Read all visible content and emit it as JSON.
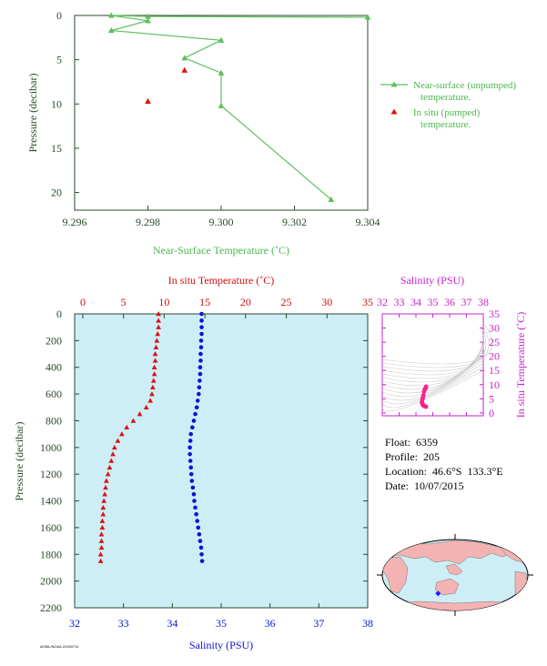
{
  "info": {
    "float_label": "Float:",
    "float_value": "6359",
    "profile_label": "Profile:",
    "profile_value": "205",
    "location_label": "Location:",
    "location_value": "46.6°S  133.3°E",
    "date_label": "Date:",
    "date_value": "10/07/2015"
  },
  "footer": {
    "code": "AOML/NOAA 20150710"
  },
  "colors": {
    "near_surface": "#5cbf5c",
    "temperature": "#e01010",
    "salinity": "#0a14d6",
    "ts_accent": "#cc22cc",
    "panel_bg": "#cdeef7",
    "axis_dark": "#2a4a2a"
  },
  "chart_data": [
    {
      "type": "line",
      "xlabel": "Near-Surface Temperature (˚C)",
      "ylabel": "Pressure (decibar)",
      "xlim": [
        9.296,
        9.304
      ],
      "ylim": [
        22,
        0
      ],
      "xticks": [
        9.296,
        9.298,
        9.3,
        9.302,
        9.304
      ],
      "xtick_labels": [
        "9.296",
        "9.298",
        "9.300",
        "9.302",
        "9.304"
      ],
      "yticks": [
        0,
        5,
        10,
        15,
        20
      ],
      "ytick_labels": [
        "0",
        "5",
        "10",
        "15",
        "20"
      ],
      "series": [
        {
          "name": "Near-surface (unpumped) temperature.",
          "points": [
            [
              9.304,
              0.2
            ],
            [
              9.298,
              0.1
            ],
            [
              9.297,
              0.0
            ],
            [
              9.298,
              0.6
            ],
            [
              9.297,
              1.7
            ],
            [
              9.3,
              2.8
            ],
            [
              9.299,
              4.8
            ],
            [
              9.3,
              6.5
            ],
            [
              9.3,
              10.2
            ],
            [
              9.303,
              20.8
            ]
          ]
        },
        {
          "name": "In situ (pumped) temperature.",
          "points": [
            [
              9.299,
              6.2
            ],
            [
              9.298,
              9.7
            ]
          ]
        }
      ],
      "legend_position": "right"
    },
    {
      "type": "scatter",
      "x_top_label": "In situ Temperature (˚C)",
      "x_bottom_label": "Salinity (PSU)",
      "ylabel": "Pressure (decibar)",
      "temp_lim": [
        -1,
        35
      ],
      "sal_lim": [
        32,
        38
      ],
      "ylim": [
        2200,
        0
      ],
      "temp_ticks": [
        0,
        5,
        10,
        15,
        20,
        25,
        30,
        35
      ],
      "temp_tick_labels": [
        "0",
        "5",
        "10",
        "15",
        "20",
        "25",
        "30",
        "35"
      ],
      "sal_ticks": [
        32,
        33,
        34,
        35,
        36,
        37,
        38
      ],
      "sal_tick_labels": [
        "32",
        "33",
        "34",
        "35",
        "36",
        "37",
        "38"
      ],
      "pressure_ticks": [
        0,
        200,
        400,
        600,
        800,
        1000,
        1200,
        1400,
        1600,
        1800,
        2000,
        2200
      ],
      "pressure_tick_labels": [
        "0",
        "200",
        "400",
        "600",
        "800",
        "1000",
        "1200",
        "1400",
        "1600",
        "1800",
        "2000",
        "2200"
      ],
      "temperature_profile": [
        [
          9.3,
          0
        ],
        [
          9.3,
          50
        ],
        [
          9.3,
          100
        ],
        [
          9.2,
          150
        ],
        [
          9.1,
          200
        ],
        [
          9.0,
          250
        ],
        [
          8.9,
          300
        ],
        [
          8.9,
          350
        ],
        [
          8.8,
          400
        ],
        [
          8.8,
          450
        ],
        [
          8.7,
          500
        ],
        [
          8.6,
          550
        ],
        [
          8.5,
          600
        ],
        [
          8.3,
          650
        ],
        [
          7.8,
          700
        ],
        [
          7.0,
          750
        ],
        [
          6.2,
          800
        ],
        [
          5.4,
          850
        ],
        [
          4.8,
          900
        ],
        [
          4.3,
          950
        ],
        [
          3.9,
          1000
        ],
        [
          3.7,
          1050
        ],
        [
          3.5,
          1100
        ],
        [
          3.3,
          1150
        ],
        [
          3.1,
          1200
        ],
        [
          2.9,
          1250
        ],
        [
          2.8,
          1300
        ],
        [
          2.7,
          1350
        ],
        [
          2.6,
          1400
        ],
        [
          2.5,
          1450
        ],
        [
          2.5,
          1500
        ],
        [
          2.4,
          1550
        ],
        [
          2.4,
          1600
        ],
        [
          2.3,
          1650
        ],
        [
          2.3,
          1700
        ],
        [
          2.3,
          1750
        ],
        [
          2.2,
          1800
        ],
        [
          2.2,
          1850
        ]
      ],
      "salinity_profile": [
        [
          34.6,
          0
        ],
        [
          34.6,
          50
        ],
        [
          34.6,
          100
        ],
        [
          34.6,
          150
        ],
        [
          34.59,
          200
        ],
        [
          34.59,
          250
        ],
        [
          34.58,
          300
        ],
        [
          34.58,
          350
        ],
        [
          34.57,
          400
        ],
        [
          34.57,
          450
        ],
        [
          34.56,
          500
        ],
        [
          34.55,
          550
        ],
        [
          34.54,
          600
        ],
        [
          34.52,
          650
        ],
        [
          34.5,
          700
        ],
        [
          34.47,
          750
        ],
        [
          34.44,
          800
        ],
        [
          34.41,
          850
        ],
        [
          34.38,
          900
        ],
        [
          34.37,
          950
        ],
        [
          34.36,
          1000
        ],
        [
          34.36,
          1050
        ],
        [
          34.37,
          1100
        ],
        [
          34.38,
          1150
        ],
        [
          34.39,
          1200
        ],
        [
          34.4,
          1250
        ],
        [
          34.42,
          1300
        ],
        [
          34.44,
          1350
        ],
        [
          34.45,
          1400
        ],
        [
          34.47,
          1450
        ],
        [
          34.49,
          1500
        ],
        [
          34.51,
          1550
        ],
        [
          34.53,
          1600
        ],
        [
          34.55,
          1650
        ],
        [
          34.57,
          1700
        ],
        [
          34.59,
          1750
        ],
        [
          34.6,
          1800
        ],
        [
          34.61,
          1850
        ]
      ]
    },
    {
      "type": "scatter",
      "xlabel": "Salinity (PSU)",
      "ylabel": "In situ Temperature (˚C)",
      "xlim": [
        32,
        38
      ],
      "ylim": [
        -1,
        35
      ],
      "xticks": [
        32,
        33,
        34,
        35,
        36,
        37,
        38
      ],
      "xtick_labels": [
        "32",
        "33",
        "34",
        "35",
        "36",
        "37",
        "38"
      ],
      "yticks": [
        0,
        5,
        10,
        15,
        20,
        25,
        30,
        35
      ],
      "ytick_labels": [
        "0",
        "5",
        "10",
        "15",
        "20",
        "25",
        "30",
        "35"
      ],
      "points": [
        [
          34.6,
          9.3
        ],
        [
          34.59,
          9.0
        ],
        [
          34.57,
          8.8
        ],
        [
          34.55,
          8.5
        ],
        [
          34.52,
          8.3
        ],
        [
          34.48,
          7.5
        ],
        [
          34.44,
          6.2
        ],
        [
          34.41,
          5.4
        ],
        [
          34.38,
          4.8
        ],
        [
          34.36,
          3.9
        ],
        [
          34.36,
          3.6
        ],
        [
          34.38,
          3.3
        ],
        [
          34.4,
          2.9
        ],
        [
          34.44,
          2.7
        ],
        [
          34.47,
          2.5
        ],
        [
          34.51,
          2.4
        ],
        [
          34.55,
          2.3
        ],
        [
          34.6,
          2.2
        ]
      ]
    }
  ],
  "map": {
    "marker_lon": 133.3,
    "marker_lat": -46.6
  }
}
